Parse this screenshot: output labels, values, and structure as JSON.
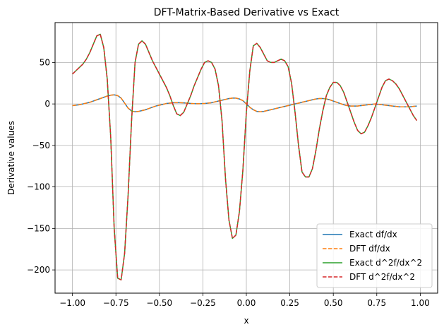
{
  "chart_data": {
    "type": "line",
    "title": "DFT-Matrix-Based Derivative vs Exact",
    "xlabel": "x",
    "ylabel": "Derivative values",
    "xlim": [
      -1.1,
      1.1
    ],
    "ylim": [
      -228,
      98
    ],
    "x_ticks": [
      -1.0,
      -0.75,
      -0.5,
      -0.25,
      0.0,
      0.25,
      0.5,
      0.75,
      1.0
    ],
    "x_tick_labels": [
      "−1.00",
      "−0.75",
      "−0.50",
      "−0.25",
      "0.00",
      "0.25",
      "0.50",
      "0.75",
      "1.00"
    ],
    "y_ticks": [
      -200,
      -150,
      -100,
      -50,
      0,
      50
    ],
    "y_tick_labels": [
      "−200",
      "−150",
      "−100",
      "−50",
      "0",
      "50"
    ],
    "grid": true,
    "legend_position": "bottom-right",
    "x": [
      -1.0,
      -0.98,
      -0.96,
      -0.94,
      -0.92,
      -0.9,
      -0.88,
      -0.86,
      -0.84,
      -0.82,
      -0.8,
      -0.78,
      -0.76,
      -0.74,
      -0.72,
      -0.7,
      -0.68,
      -0.66,
      -0.64,
      -0.62,
      -0.6,
      -0.58,
      -0.56,
      -0.54,
      -0.52,
      -0.5,
      -0.48,
      -0.46,
      -0.44,
      -0.42,
      -0.4,
      -0.38,
      -0.36,
      -0.34,
      -0.32,
      -0.3,
      -0.28,
      -0.26,
      -0.24,
      -0.22,
      -0.2,
      -0.18,
      -0.16,
      -0.14,
      -0.12,
      -0.1,
      -0.08,
      -0.06,
      -0.04,
      -0.02,
      0.0,
      0.02,
      0.04,
      0.06,
      0.08,
      0.1,
      0.12,
      0.14,
      0.16,
      0.18,
      0.2,
      0.22,
      0.24,
      0.26,
      0.28,
      0.3,
      0.32,
      0.34,
      0.36,
      0.38,
      0.4,
      0.42,
      0.44,
      0.46,
      0.48,
      0.5,
      0.52,
      0.54,
      0.56,
      0.58,
      0.6,
      0.62,
      0.64,
      0.66,
      0.68,
      0.7,
      0.72,
      0.74,
      0.76,
      0.78,
      0.8,
      0.82,
      0.84,
      0.86,
      0.88,
      0.9,
      0.92,
      0.94,
      0.96,
      0.98
    ],
    "series": [
      {
        "name": "Exact df/dx",
        "color": "#1f77b4",
        "dash": "solid",
        "values": [
          -2,
          -1.5,
          -1,
          0,
          1,
          2,
          3.5,
          5,
          6.5,
          8,
          9.5,
          10.5,
          11,
          10,
          7,
          1,
          -5,
          -8.5,
          -9.5,
          -9,
          -8,
          -7,
          -5.5,
          -4,
          -2.5,
          -1.5,
          -0.5,
          0.5,
          1,
          1.5,
          1.5,
          1.5,
          1.3,
          1,
          0.5,
          0.3,
          0.2,
          0.3,
          0.5,
          1,
          1.5,
          2.5,
          3.5,
          4.5,
          5.5,
          6.5,
          7,
          7,
          6,
          4,
          0,
          -4,
          -7,
          -9,
          -9.5,
          -9,
          -8,
          -7,
          -6,
          -5,
          -4,
          -3,
          -2,
          -1,
          0,
          1,
          2,
          3,
          4,
          5,
          6,
          6.5,
          6.5,
          6,
          5,
          3.5,
          2,
          0.5,
          -1,
          -2,
          -2.5,
          -2.5,
          -2.5,
          -2,
          -1.5,
          -1,
          -0.5,
          0,
          -0.5,
          -1,
          -1.5,
          -2,
          -2.5,
          -3,
          -3.5,
          -3.5,
          -3.5,
          -3.5,
          -3,
          -2.5
        ]
      },
      {
        "name": "DFT df/dx",
        "color": "#ff7f0e",
        "dash": "dashed",
        "values": [
          -2,
          -1.5,
          -1,
          0,
          1,
          2,
          3.5,
          5,
          6.5,
          8,
          9.5,
          10.5,
          11,
          10,
          7,
          1,
          -5,
          -8.5,
          -9.5,
          -9,
          -8,
          -7,
          -5.5,
          -4,
          -2.5,
          -1.5,
          -0.5,
          0.5,
          1,
          1.5,
          1.5,
          1.5,
          1.3,
          1,
          0.5,
          0.3,
          0.2,
          0.3,
          0.5,
          1,
          1.5,
          2.5,
          3.5,
          4.5,
          5.5,
          6.5,
          7,
          7,
          6,
          4,
          0,
          -4,
          -7,
          -9,
          -9.5,
          -9,
          -8,
          -7,
          -6,
          -5,
          -4,
          -3,
          -2,
          -1,
          0,
          1,
          2,
          3,
          4,
          5,
          6,
          6.5,
          6.5,
          6,
          5,
          3.5,
          2,
          0.5,
          -1,
          -2,
          -2.5,
          -2.5,
          -2.5,
          -2,
          -1.5,
          -1,
          -0.5,
          0,
          -0.5,
          -1,
          -1.5,
          -2,
          -2.5,
          -3,
          -3.5,
          -3.5,
          -3.5,
          -3.5,
          -3,
          -2.5
        ]
      },
      {
        "name": "Exact d^2f/dx^2",
        "color": "#2ca02c",
        "dash": "solid",
        "values": [
          36,
          40,
          44,
          48,
          54,
          62,
          72,
          82,
          84,
          68,
          30,
          -40,
          -150,
          -210,
          -212,
          -180,
          -110,
          -20,
          50,
          72,
          76,
          72,
          62,
          52,
          44,
          36,
          28,
          20,
          10,
          -2,
          -12,
          -14,
          -10,
          0,
          10,
          22,
          32,
          42,
          50,
          52,
          50,
          42,
          22,
          -20,
          -90,
          -140,
          -162,
          -158,
          -130,
          -80,
          -10,
          40,
          70,
          73,
          68,
          60,
          52,
          50,
          50,
          52,
          54,
          52,
          45,
          25,
          -10,
          -50,
          -82,
          -88,
          -88,
          -78,
          -56,
          -30,
          -8,
          10,
          20,
          26,
          26,
          22,
          14,
          2,
          -10,
          -22,
          -32,
          -36,
          -34,
          -26,
          -16,
          -4,
          8,
          20,
          28,
          30,
          28,
          24,
          18,
          10,
          2,
          -6,
          -14,
          -20
        ]
      },
      {
        "name": "DFT d^2f/dx^2",
        "color": "#d62728",
        "dash": "dashed",
        "values": [
          36,
          40,
          44,
          48,
          54,
          62,
          72,
          82,
          84,
          68,
          30,
          -40,
          -150,
          -210,
          -212,
          -180,
          -110,
          -20,
          50,
          72,
          76,
          72,
          62,
          52,
          44,
          36,
          28,
          20,
          10,
          -2,
          -12,
          -14,
          -10,
          0,
          10,
          22,
          32,
          42,
          50,
          52,
          50,
          42,
          22,
          -20,
          -90,
          -140,
          -162,
          -158,
          -130,
          -80,
          -10,
          40,
          70,
          73,
          68,
          60,
          52,
          50,
          50,
          52,
          54,
          52,
          45,
          25,
          -10,
          -50,
          -82,
          -88,
          -88,
          -78,
          -56,
          -30,
          -8,
          10,
          20,
          26,
          26,
          22,
          14,
          2,
          -10,
          -22,
          -32,
          -36,
          -34,
          -26,
          -16,
          -4,
          8,
          20,
          28,
          30,
          28,
          24,
          18,
          10,
          2,
          -6,
          -14,
          -20
        ]
      }
    ]
  }
}
